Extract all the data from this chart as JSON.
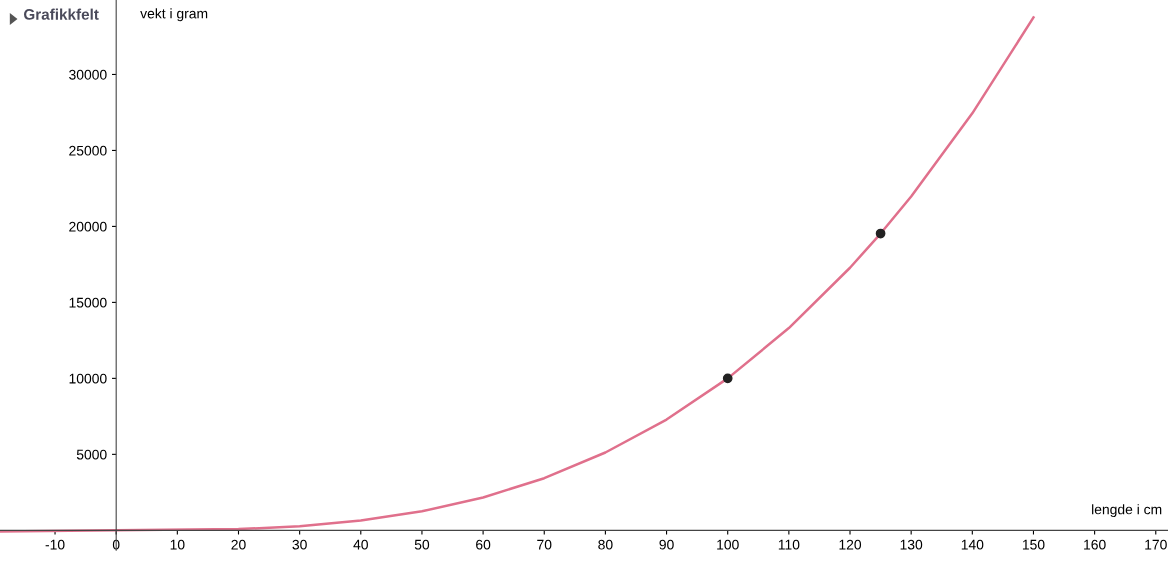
{
  "chart_data": {
    "type": "line",
    "title": "Grafikkfelt",
    "xlabel": "lengde i cm",
    "ylabel": "vekt i gram",
    "xlim": [
      -19,
      172
    ],
    "ylim": [
      -1300,
      34900
    ],
    "xticks": [
      -10,
      0,
      10,
      20,
      30,
      40,
      50,
      60,
      70,
      80,
      90,
      100,
      110,
      120,
      130,
      140,
      150,
      160,
      170
    ],
    "yticks": [
      5000,
      10000,
      15000,
      20000,
      25000,
      30000
    ],
    "grid": false,
    "legend": false,
    "series": [
      {
        "color": "#e0708c",
        "x": [
          -19,
          0,
          20,
          30,
          40,
          50,
          60,
          70,
          80,
          90,
          100,
          110,
          120,
          125,
          130,
          140,
          150
        ],
        "values": [
          -70,
          0,
          80,
          270,
          640,
          1250,
          2160,
          3430,
          5120,
          7290,
          10000,
          13310,
          17280,
          19530,
          21970,
          27440,
          33750
        ]
      },
      {
        "type": "scatter",
        "color": "#222222",
        "x": [
          100,
          125
        ],
        "values": [
          10000,
          19530
        ]
      }
    ]
  }
}
